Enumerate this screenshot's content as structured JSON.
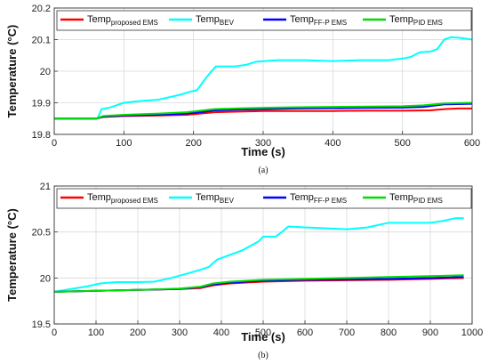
{
  "chart_data": [
    {
      "type": "line",
      "caption": "(a)",
      "xlabel": "Time (s)",
      "ylabel": "Temperature (°C)",
      "xlim": [
        0,
        600
      ],
      "ylim": [
        19.8,
        20.2
      ],
      "xticks": [
        0,
        100,
        200,
        300,
        400,
        500,
        600
      ],
      "yticks": [
        19.8,
        19.9,
        20,
        20.1,
        20.2
      ],
      "ytick_labels": [
        "19.8",
        "19.9",
        "20",
        "20.1",
        "20.2"
      ],
      "grid": true,
      "legend_position": "top",
      "series": [
        {
          "name": "Temp",
          "subscript": "proposed EMS",
          "color": "#ff0000",
          "x": [
            0,
            60,
            70,
            100,
            150,
            190,
            210,
            230,
            260,
            300,
            350,
            400,
            450,
            500,
            540,
            560,
            580,
            600
          ],
          "y": [
            19.85,
            19.85,
            19.855,
            19.858,
            19.86,
            19.862,
            19.866,
            19.87,
            19.872,
            19.874,
            19.874,
            19.874,
            19.875,
            19.875,
            19.876,
            19.88,
            19.882,
            19.882
          ]
        },
        {
          "name": "Temp",
          "subscript": "BEV",
          "color": "#00ffff",
          "x": [
            0,
            62,
            68,
            80,
            100,
            120,
            150,
            180,
            195,
            205,
            215,
            222,
            232,
            260,
            275,
            290,
            320,
            360,
            400,
            440,
            480,
            500,
            512,
            525,
            540,
            550,
            560,
            570,
            585,
            600
          ],
          "y": [
            19.85,
            19.85,
            19.88,
            19.885,
            19.9,
            19.905,
            19.91,
            19.925,
            19.935,
            19.94,
            19.97,
            19.99,
            20.015,
            20.015,
            20.02,
            20.03,
            20.035,
            20.035,
            20.032,
            20.035,
            20.035,
            20.04,
            20.045,
            20.06,
            20.062,
            20.07,
            20.1,
            20.108,
            20.105,
            20.1
          ]
        },
        {
          "name": "Temp",
          "subscript": "FF-P EMS",
          "color": "#0000ff",
          "x": [
            0,
            60,
            70,
            100,
            150,
            190,
            210,
            230,
            260,
            300,
            350,
            400,
            450,
            500,
            530,
            560,
            600
          ],
          "y": [
            19.85,
            19.85,
            19.856,
            19.86,
            19.862,
            19.866,
            19.87,
            19.876,
            19.878,
            19.88,
            19.882,
            19.883,
            19.884,
            19.885,
            19.887,
            19.895,
            19.897
          ]
        },
        {
          "name": "Temp",
          "subscript": "PID EMS",
          "color": "#00dd00",
          "x": [
            0,
            60,
            70,
            100,
            150,
            190,
            210,
            230,
            260,
            300,
            350,
            400,
            450,
            500,
            530,
            560,
            600
          ],
          "y": [
            19.85,
            19.85,
            19.858,
            19.862,
            19.866,
            19.87,
            19.875,
            19.88,
            19.882,
            19.884,
            19.886,
            19.887,
            19.888,
            19.889,
            19.892,
            19.898,
            19.9
          ]
        }
      ]
    },
    {
      "type": "line",
      "caption": "(b)",
      "xlabel": "Time (s)",
      "ylabel": "Temperature (°C)",
      "xlim": [
        0,
        1000
      ],
      "ylim": [
        19.5,
        21
      ],
      "xticks": [
        0,
        100,
        200,
        300,
        400,
        500,
        600,
        700,
        800,
        900,
        1000
      ],
      "yticks": [
        19.5,
        20,
        20.5,
        21
      ],
      "ytick_labels": [
        "19.5",
        "20",
        "20.5",
        "21"
      ],
      "grid": true,
      "legend_position": "top",
      "series": [
        {
          "name": "Temp",
          "subscript": "proposed EMS",
          "color": "#ff0000",
          "x": [
            0,
            100,
            200,
            300,
            350,
            380,
            420,
            500,
            600,
            700,
            800,
            900,
            980
          ],
          "y": [
            19.85,
            19.86,
            19.87,
            19.88,
            19.89,
            19.92,
            19.94,
            19.96,
            19.97,
            19.975,
            19.98,
            19.99,
            20.0
          ]
        },
        {
          "name": "Temp",
          "subscript": "BEV",
          "color": "#00ffff",
          "x": [
            0,
            40,
            80,
            110,
            150,
            200,
            240,
            280,
            320,
            350,
            370,
            390,
            420,
            450,
            470,
            490,
            500,
            530,
            545,
            560,
            600,
            650,
            700,
            750,
            780,
            800,
            850,
            900,
            930,
            960,
            980
          ],
          "y": [
            19.85,
            19.88,
            19.91,
            19.94,
            19.955,
            19.955,
            19.96,
            20.0,
            20.05,
            20.09,
            20.12,
            20.2,
            20.25,
            20.3,
            20.35,
            20.4,
            20.45,
            20.45,
            20.5,
            20.56,
            20.55,
            20.54,
            20.53,
            20.55,
            20.58,
            20.6,
            20.6,
            20.6,
            20.62,
            20.65,
            20.65
          ]
        },
        {
          "name": "Temp",
          "subscript": "FF-P EMS",
          "color": "#0000ff",
          "x": [
            0,
            100,
            200,
            300,
            350,
            380,
            420,
            500,
            600,
            700,
            800,
            900,
            980
          ],
          "y": [
            19.85,
            19.86,
            19.87,
            19.88,
            19.9,
            19.93,
            19.95,
            19.97,
            19.98,
            19.985,
            19.99,
            20.0,
            20.01
          ]
        },
        {
          "name": "Temp",
          "subscript": "PID EMS",
          "color": "#00dd00",
          "x": [
            0,
            100,
            200,
            300,
            350,
            380,
            420,
            500,
            600,
            700,
            800,
            900,
            980
          ],
          "y": [
            19.85,
            19.86,
            19.87,
            19.885,
            19.905,
            19.94,
            19.96,
            19.98,
            19.99,
            20.0,
            20.01,
            20.02,
            20.03
          ]
        }
      ]
    }
  ]
}
